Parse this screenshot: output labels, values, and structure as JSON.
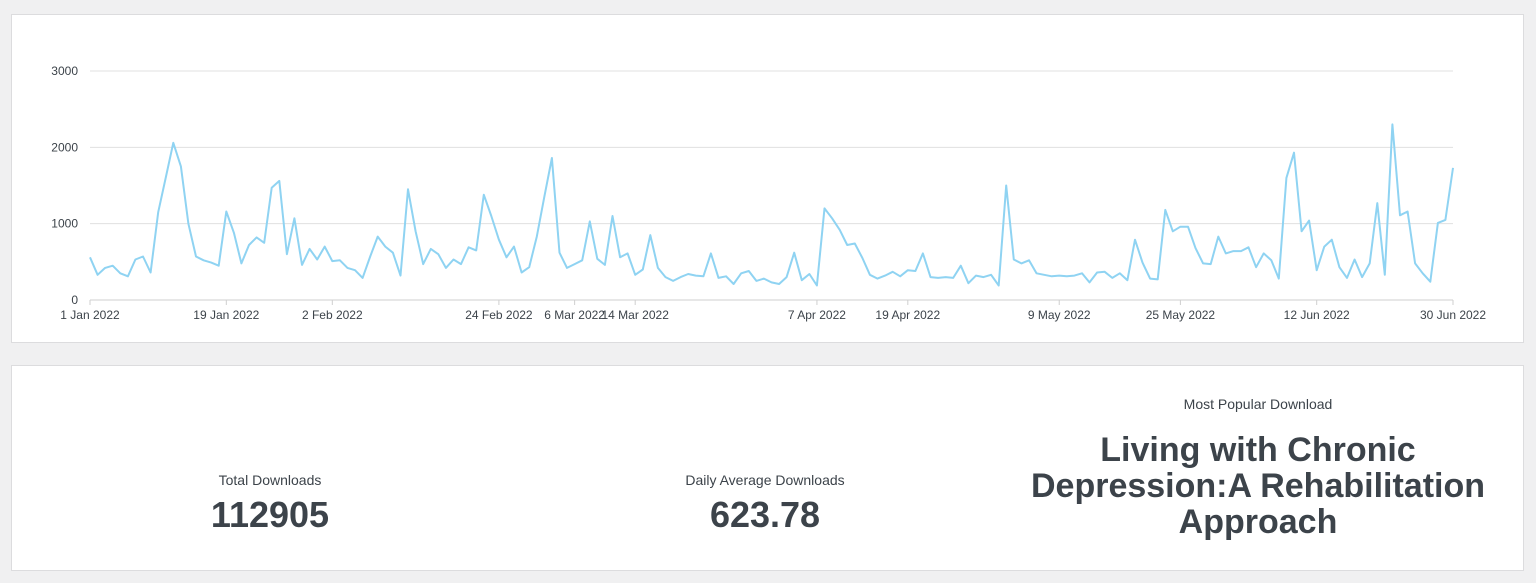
{
  "chart_data": {
    "type": "line",
    "title": "",
    "xlabel": "",
    "ylabel": "",
    "ylim": [
      0,
      3000
    ],
    "yticks": [
      0,
      1000,
      2000,
      3000
    ],
    "grid": true,
    "legend": "none",
    "color": "#8fd3f2",
    "xlim": [
      "2022-01-01",
      "2022-06-30"
    ],
    "xticks": [
      {
        "date": "2022-01-01",
        "label": "1 Jan 2022"
      },
      {
        "date": "2022-01-19",
        "label": "19 Jan 2022"
      },
      {
        "date": "2022-02-02",
        "label": "2 Feb 2022"
      },
      {
        "date": "2022-02-24",
        "label": "24 Feb 2022"
      },
      {
        "date": "2022-03-06",
        "label": "6 Mar 2022"
      },
      {
        "date": "2022-03-14",
        "label": "14 Mar 2022"
      },
      {
        "date": "2022-04-07",
        "label": "7 Apr 2022"
      },
      {
        "date": "2022-04-19",
        "label": "19 Apr 2022"
      },
      {
        "date": "2022-05-09",
        "label": "9 May 2022"
      },
      {
        "date": "2022-05-25",
        "label": "25 May 2022"
      },
      {
        "date": "2022-06-12",
        "label": "12 Jun 2022"
      },
      {
        "date": "2022-06-30",
        "label": "30 Jun 2022"
      }
    ],
    "series": [
      {
        "start_date": "2022-01-01",
        "values": [
          560,
          330,
          420,
          450,
          350,
          310,
          530,
          570,
          360,
          1150,
          1600,
          2060,
          1750,
          1000,
          570,
          520,
          490,
          450,
          1160,
          880,
          480,
          720,
          820,
          750,
          1470,
          1560,
          600,
          1070,
          460,
          670,
          530,
          700,
          510,
          520,
          420,
          390,
          290,
          570,
          830,
          700,
          620,
          320,
          1450,
          900,
          470,
          670,
          600,
          420,
          530,
          470,
          690,
          650,
          1380,
          1100,
          790,
          560,
          700,
          360,
          430,
          830,
          1350,
          1860,
          620,
          420,
          470,
          520,
          1030,
          540,
          460,
          1100,
          560,
          610,
          330,
          400,
          850,
          420,
          300,
          250,
          300,
          340,
          320,
          310,
          610,
          290,
          310,
          210,
          350,
          380,
          250,
          280,
          230,
          210,
          300,
          620,
          260,
          340,
          190,
          1200,
          1070,
          920,
          720,
          740,
          550,
          330,
          280,
          320,
          370,
          310,
          390,
          380,
          610,
          300,
          290,
          300,
          290,
          450,
          220,
          320,
          300,
          330,
          190,
          1500,
          530,
          480,
          520,
          350,
          330,
          310,
          320,
          310,
          320,
          350,
          230,
          360,
          370,
          290,
          350,
          260,
          790,
          490,
          280,
          270,
          1180,
          900,
          960,
          960,
          680,
          480,
          470,
          830,
          610,
          640,
          640,
          690,
          430,
          610,
          520,
          280,
          1600,
          1930,
          900,
          1040,
          390,
          700,
          790,
          430,
          290,
          530,
          300,
          480,
          1270,
          330,
          2300,
          1110,
          1160,
          480,
          350,
          240,
          1010,
          1050,
          1730
        ]
      }
    ]
  },
  "stats": {
    "total_label": "Total Downloads",
    "total_value": "112905",
    "average_label": "Daily Average Downloads",
    "average_value": "623.78",
    "popular_label": "Most Popular Download",
    "popular_value": "Living with Chronic Depression:A Rehabilitation Approach"
  }
}
